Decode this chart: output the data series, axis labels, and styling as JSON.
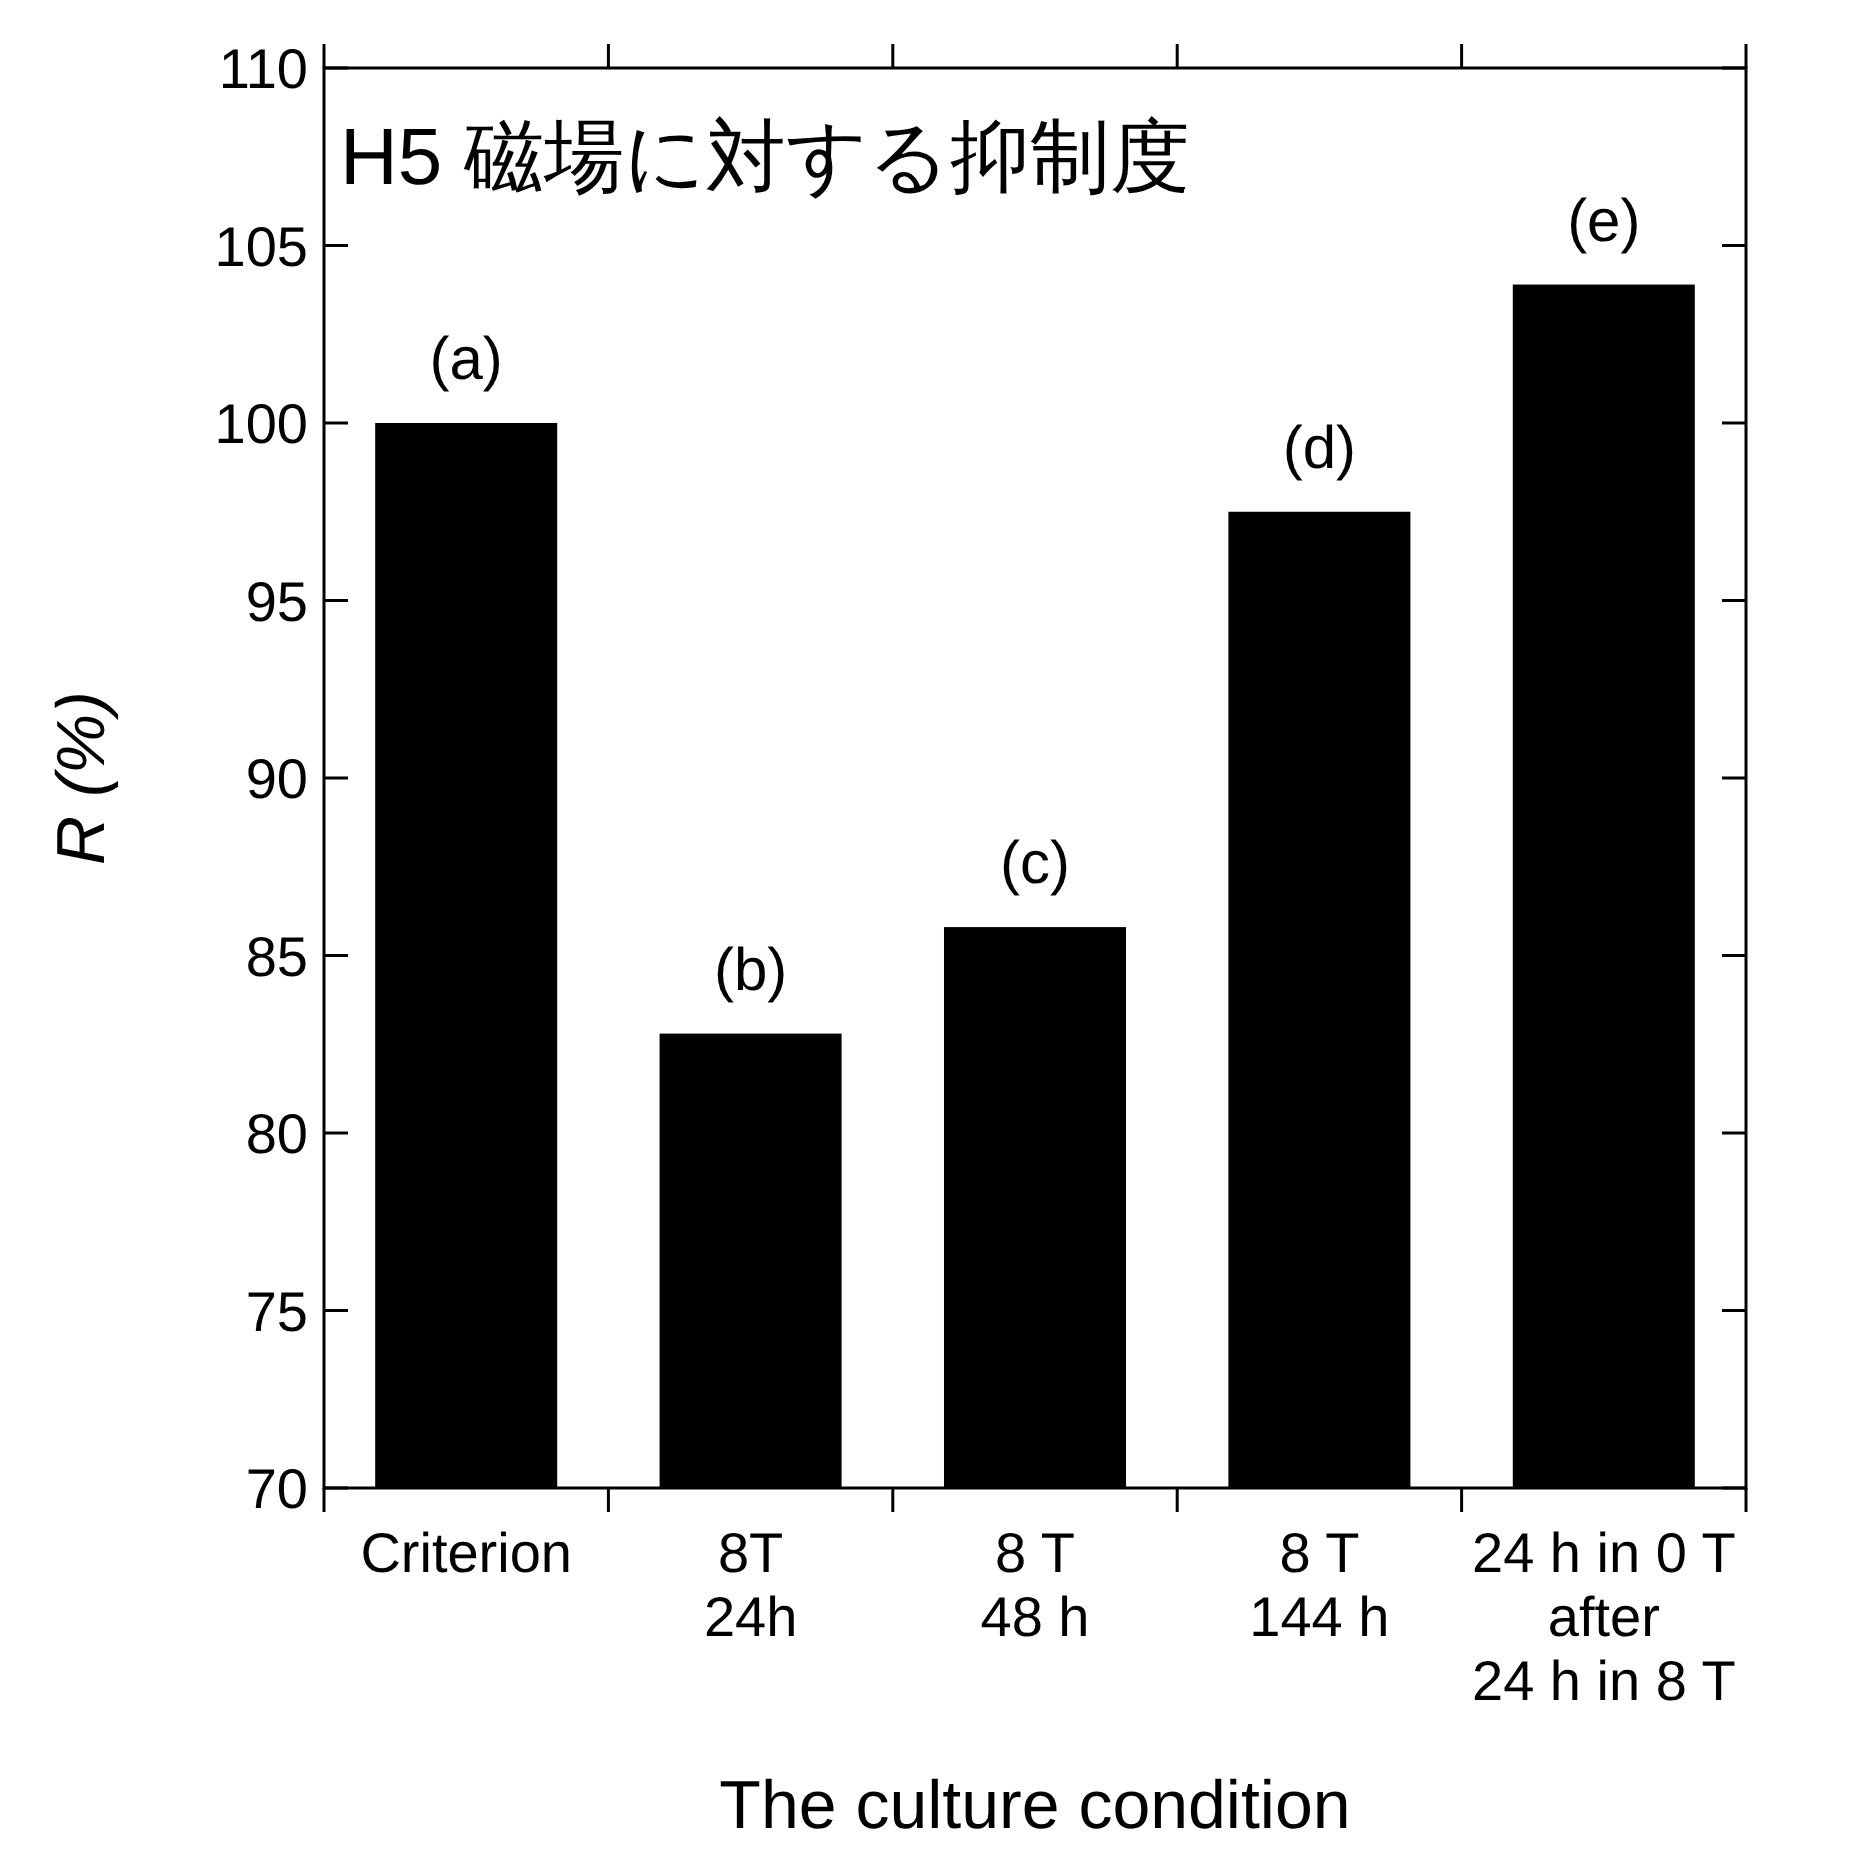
{
  "chart_data": {
    "type": "bar",
    "title": "H5  磁場に対する抑制度",
    "xlabel": "The culture condition",
    "ylabel": "R (%)",
    "categories": [
      "Criterion",
      "8T\n24h",
      "8 T\n48 h",
      "8 T\n144 h",
      "24 h in 0 T\nafter\n24 h in 8 T"
    ],
    "values": [
      100,
      82.8,
      85.8,
      97.5,
      103.9
    ],
    "color": "#000000",
    "ylim": [
      70,
      110
    ],
    "yticks": [
      70,
      75,
      80,
      85,
      90,
      95,
      100,
      105,
      110
    ],
    "grid": false,
    "annotations": [
      {
        "text": "(a)",
        "x": "Criterion",
        "y": 100
      },
      {
        "text": "(b)",
        "x": "8T\n24h",
        "y": 82.8
      },
      {
        "text": "(c)",
        "x": "8 T\n48 h",
        "y": 85.8
      },
      {
        "text": "(d)",
        "x": "8 T\n144 h",
        "y": 97.5
      },
      {
        "text": "(e)",
        "x": "24 h in 0 T\nafter\n24 h in 8 T",
        "y": 103.9
      }
    ]
  }
}
